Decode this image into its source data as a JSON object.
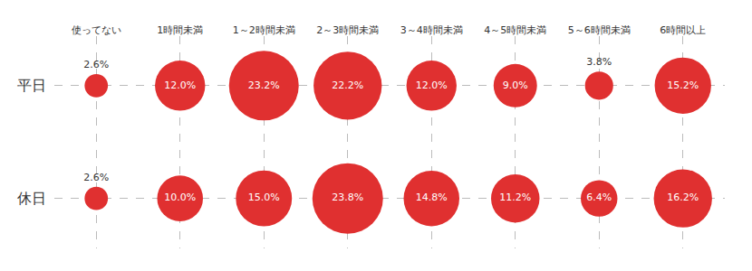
{
  "chart_data": {
    "type": "bubble",
    "categories": [
      "使ってない",
      "1時間未満",
      "1～2時間未満",
      "2～3時間未満",
      "3～4時間未満",
      "4～5時間未満",
      "5～6時間未満",
      "6時間以上"
    ],
    "series": [
      {
        "name": "平日",
        "values": [
          2.6,
          12.0,
          23.2,
          22.2,
          12.0,
          9.0,
          3.8,
          15.2
        ],
        "value_labels": [
          "2.6%",
          "12.0%",
          "23.2%",
          "22.2%",
          "12.0%",
          "9.0%",
          "3.8%",
          "15.2%"
        ]
      },
      {
        "name": "休日",
        "values": [
          2.6,
          10.0,
          15.0,
          23.8,
          14.8,
          11.2,
          6.4,
          16.2
        ],
        "value_labels": [
          "2.6%",
          "10.0%",
          "15.0%",
          "23.8%",
          "14.8%",
          "11.2%",
          "6.4%",
          "16.2%"
        ]
      }
    ],
    "color": "#e03030",
    "data_labels": true,
    "grid": true
  }
}
